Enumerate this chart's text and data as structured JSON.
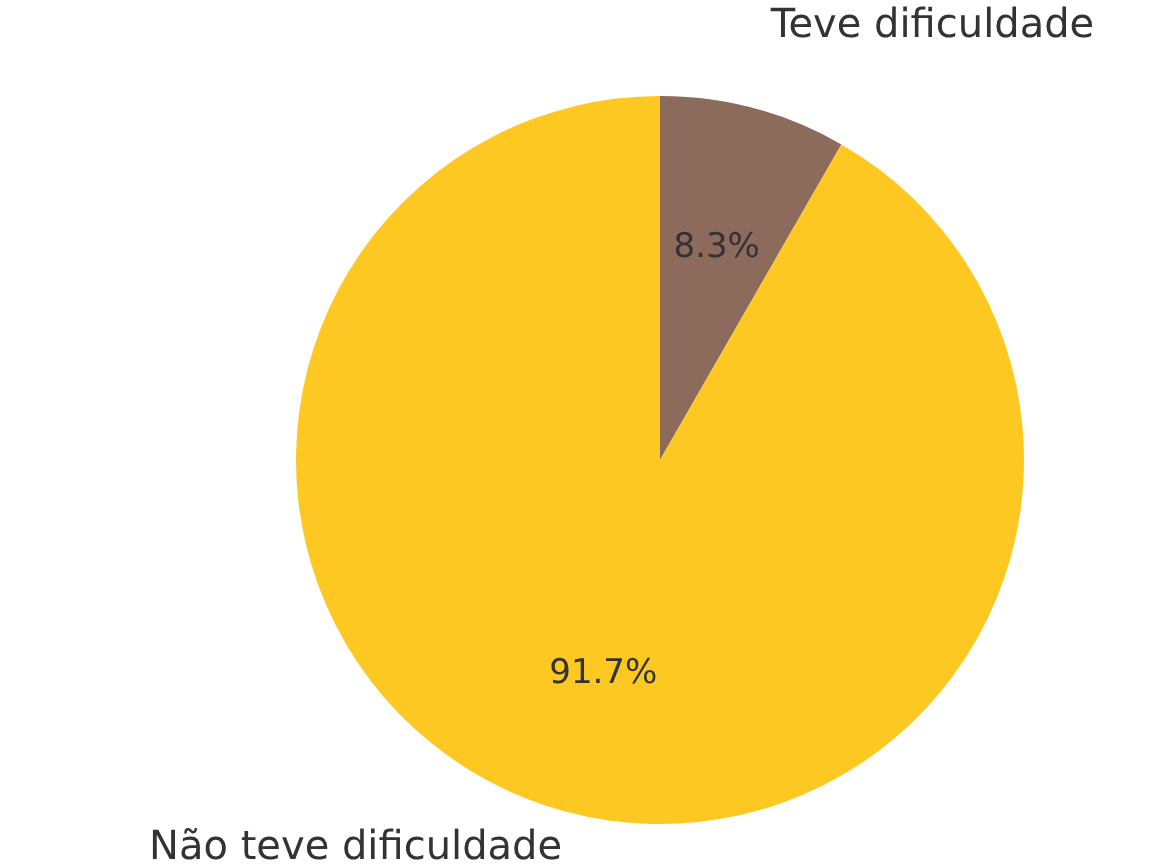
{
  "chart_data": {
    "type": "pie",
    "categories": [
      "Teve dificuldade",
      "Não teve dificuldade"
    ],
    "values": [
      8.3,
      91.7
    ],
    "colors": [
      "#8c6a5c",
      "#fec823"
    ],
    "value_labels": [
      "8.3%",
      "91.7%"
    ]
  }
}
